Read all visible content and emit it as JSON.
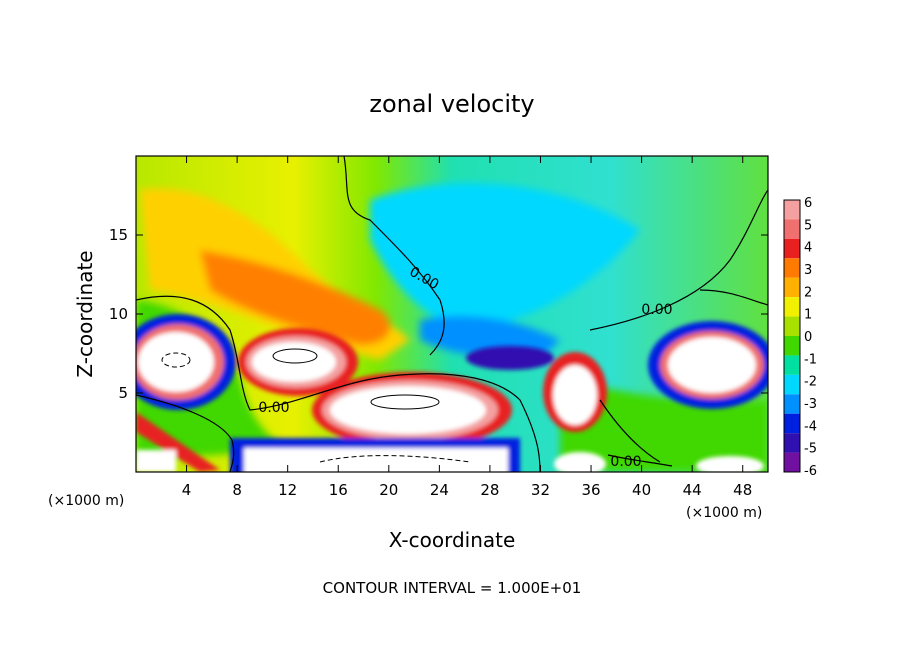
{
  "chart_data": {
    "type": "heatmap",
    "title": "zonal velocity",
    "xlabel": "X-coordinate",
    "ylabel": "Z-coordinate",
    "x_unit": "(×1000 m)",
    "x_unit_right": "(×1000 m)",
    "xlim": [
      0,
      50
    ],
    "ylim": [
      0,
      20
    ],
    "x_ticks": [
      4,
      8,
      12,
      16,
      20,
      24,
      28,
      32,
      36,
      40,
      44,
      48
    ],
    "y_ticks": [
      5,
      10,
      15
    ],
    "colorbar": {
      "levels": [
        6,
        5,
        4,
        3,
        2,
        1,
        0,
        -1,
        -2,
        -3,
        -4,
        -5,
        -6
      ],
      "colors": [
        "#f4a0a0",
        "#f07070",
        "#e82020",
        "#ff7a00",
        "#ffb000",
        "#f0f000",
        "#a8e000",
        "#40d800",
        "#00e0a0",
        "#00d8ff",
        "#0090ff",
        "#0020e0",
        "#3010b0",
        "#7010a0"
      ]
    },
    "contour_labels": [
      "0.00",
      "0.00",
      "0.00",
      "0.00"
    ],
    "footer": "CONTOUR INTERVAL = 1.000E+01"
  }
}
